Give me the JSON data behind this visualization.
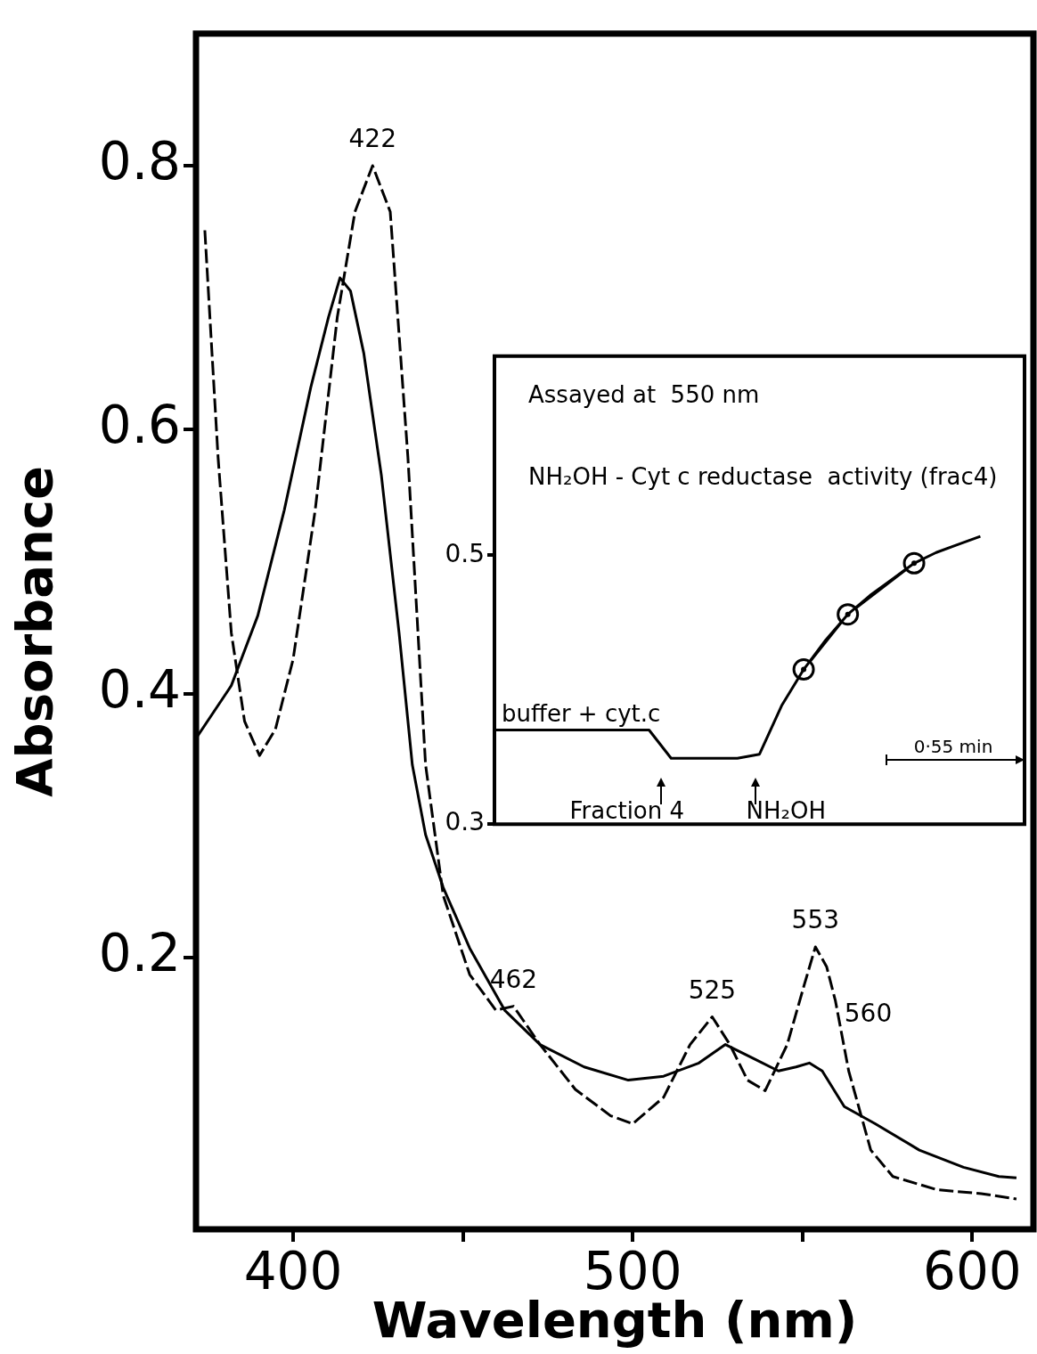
{
  "chart_data": [
    {
      "type": "line",
      "xlabel": "Wavelength (nm)",
      "ylabel": "Absorbance",
      "xlim": [
        371.4,
        618
      ],
      "ylim": [
        -0.006,
        0.9
      ],
      "xticks": [
        400,
        {
          "value": 450,
          "label": null
        },
        500,
        {
          "value": 550,
          "label": null
        },
        600
      ],
      "yticks": [
        0.2,
        0.4,
        0.6,
        0.8
      ],
      "grid": false,
      "legend": false,
      "marker": "none",
      "series": [
        {
          "type": "line",
          "color": "#000000",
          "line_style": "solid",
          "x": [
            371.4,
            381.8,
            389.6,
            397.4,
            405.2,
            410.4,
            413.8,
            416.9,
            420.8,
            426,
            431.2,
            435.1,
            439,
            444.2,
            452,
            462.3,
            472.7,
            485.7,
            498.7,
            509.1,
            519.5,
            527.3,
            535.1,
            542.9,
            548.1,
            552,
            555.8,
            562.3,
            571.4,
            584.4,
            597.4,
            607.8,
            613
          ],
          "values": [
            0.366,
            0.406,
            0.459,
            0.539,
            0.632,
            0.685,
            0.715,
            0.705,
            0.658,
            0.565,
            0.446,
            0.346,
            0.293,
            0.253,
            0.207,
            0.16,
            0.134,
            0.117,
            0.107,
            0.11,
            0.12,
            0.134,
            0.124,
            0.114,
            0.117,
            0.12,
            0.114,
            0.087,
            0.074,
            0.054,
            0.041,
            0.034,
            0.033
          ]
        },
        {
          "type": "line",
          "color": "#000000",
          "line_style": "dashed",
          "x": [
            374,
            377.9,
            381.8,
            385.7,
            390.1,
            394.8,
            400,
            406.5,
            413,
            418.2,
            423.4,
            428.6,
            433.8,
            439,
            444.2,
            452,
            459.7,
            464.9,
            472.7,
            483.1,
            493.5,
            500,
            509.1,
            516.9,
            523.4,
            528.6,
            533.8,
            539,
            545.5,
            550.6,
            553.8,
            557.1,
            559.7,
            563.6,
            570.1,
            576.6,
            589.6,
            602.6,
            613
          ],
          "values": [
            0.751,
            0.579,
            0.446,
            0.379,
            0.353,
            0.373,
            0.426,
            0.539,
            0.685,
            0.765,
            0.8,
            0.765,
            0.579,
            0.346,
            0.247,
            0.187,
            0.16,
            0.163,
            0.134,
            0.1,
            0.08,
            0.074,
            0.094,
            0.134,
            0.155,
            0.134,
            0.107,
            0.099,
            0.134,
            0.18,
            0.208,
            0.193,
            0.167,
            0.114,
            0.054,
            0.034,
            0.024,
            0.021,
            0.017
          ]
        }
      ],
      "annotations": [
        {
          "text": "422",
          "x": 423.4,
          "y": 0.8
        },
        {
          "text": "462",
          "x": 464.9,
          "y": 0.163
        },
        {
          "text": "525",
          "x": 523.4,
          "y": 0.155
        },
        {
          "text": "553",
          "x": 553.8,
          "y": 0.208
        },
        {
          "text": "560",
          "x": 559.7,
          "y": 0.167
        }
      ]
    },
    {
      "type": "line",
      "ylim": [
        0.3,
        0.648
      ],
      "yticks": [
        0.3,
        0.5
      ],
      "tick_labels": "y",
      "grid": false,
      "legend": false,
      "categories": [
        null,
        null,
        null,
        null,
        null,
        null,
        null,
        null,
        null,
        null,
        null,
        null,
        null,
        null,
        null,
        null,
        null,
        null,
        null,
        null,
        null,
        null,
        null,
        null,
        null
      ],
      "series": [
        {
          "type": "line",
          "color": "#000000",
          "marker": "none",
          "values": [
            0.37,
            0.37,
            0.37,
            0.37,
            0.37,
            0.37,
            0.37,
            0.37,
            0.349,
            0.349,
            0.349,
            0.349,
            0.352,
            0.388,
            0.415,
            0.437,
            0.456,
            0.47,
            0.482,
            0.494,
            0.502,
            0.508,
            0.514,
            null,
            null
          ]
        },
        {
          "type": "line",
          "color": "#000000",
          "marker": "circle",
          "values": [
            null,
            null,
            null,
            null,
            null,
            null,
            null,
            null,
            null,
            null,
            null,
            null,
            null,
            null,
            0.415,
            null,
            0.456,
            null,
            null,
            0.494,
            null,
            null,
            null,
            null,
            null
          ]
        }
      ],
      "annotations": [
        "Assayed at  550 nm",
        "NH₂OH - Cyt c reductase  activity (frac4)",
        "buffer + cyt.c",
        "Fraction 4",
        "NH₂OH",
        "0·55 min"
      ]
    }
  ]
}
